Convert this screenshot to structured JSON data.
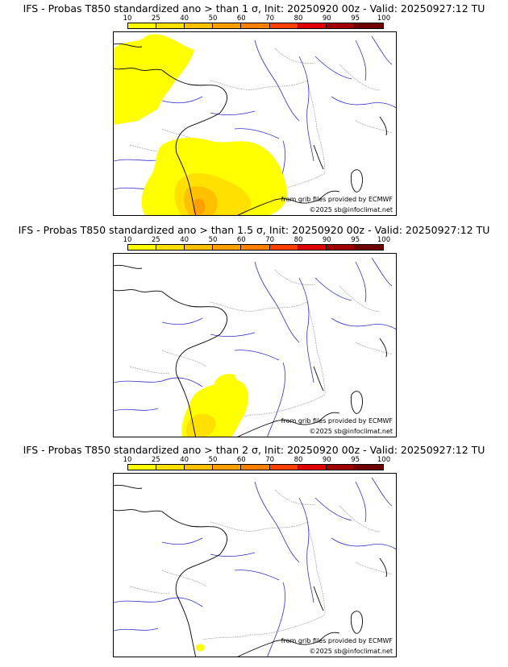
{
  "colorbar": {
    "ticks": [
      "10",
      "25",
      "40",
      "50",
      "60",
      "70",
      "80",
      "90",
      "95",
      "100"
    ],
    "colors": [
      "#ffff00",
      "#ffe000",
      "#ffc000",
      "#ffa000",
      "#ff8000",
      "#ff4000",
      "#e00000",
      "#a00000",
      "#700000"
    ]
  },
  "credits": {
    "source": "from grib files provided by ECMWF",
    "copyright": "©2025 sb@infoclimat.net"
  },
  "panels": [
    {
      "title": "IFS - Probas T850  standardized ano > than 1 σ, Init: 20250920 00z - Valid: 20250927:12 TU",
      "threshold_sigma": 1
    },
    {
      "title": "IFS - Probas T850  standardized ano > than 1.5 σ, Init: 20250920 00z - Valid: 20250927:12 TU",
      "threshold_sigma": 1.5
    },
    {
      "title": "IFS - Probas T850  standardized ano > than 2 σ, Init: 20250920 00z - Valid: 20250927:12 TU",
      "threshold_sigma": 2
    }
  ],
  "map": {
    "region": "France / Western Europe",
    "coast_color": "#000000",
    "river_color": "#3030d0",
    "border_color": "#a0a0a0"
  }
}
